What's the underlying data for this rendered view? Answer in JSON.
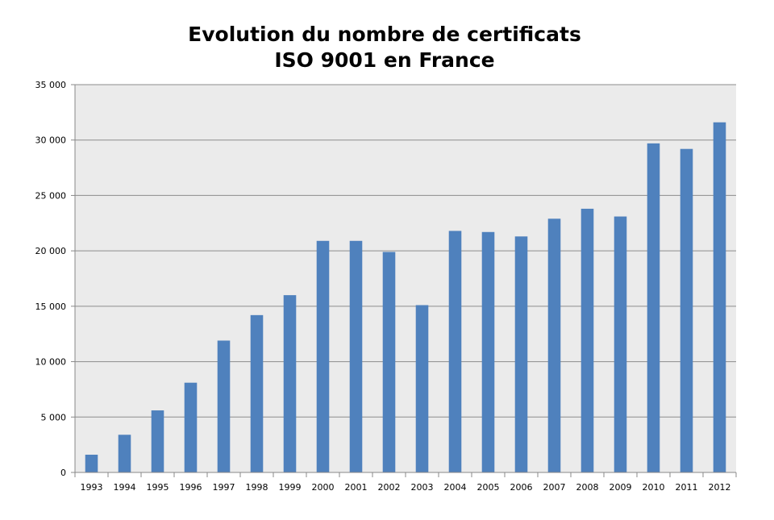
{
  "chart_data": {
    "type": "bar",
    "title_lines": [
      "Evolution du nombre de certificats",
      "ISO 9001 en France"
    ],
    "categories": [
      "1993",
      "1994",
      "1995",
      "1996",
      "1997",
      "1998",
      "1999",
      "2000",
      "2001",
      "2002",
      "2003",
      "2004",
      "2005",
      "2006",
      "2007",
      "2008",
      "2009",
      "2010",
      "2011",
      "2012"
    ],
    "values": [
      1600,
      3400,
      5600,
      8100,
      11900,
      14200,
      16000,
      20900,
      20900,
      19900,
      15100,
      21800,
      21700,
      21300,
      22900,
      23800,
      23100,
      29700,
      29200,
      31600
    ],
    "ylim": [
      0,
      35000
    ],
    "yticks": [
      0,
      5000,
      10000,
      15000,
      20000,
      25000,
      30000,
      35000
    ],
    "ytick_labels": [
      "0",
      "5 000",
      "10 000",
      "15 000",
      "20 000",
      "25 000",
      "30 000",
      "35 000"
    ],
    "grid": true,
    "plot_background": "#ebebeb",
    "bar_color": "#4f81bd",
    "grid_color": "#8c8c8c"
  }
}
